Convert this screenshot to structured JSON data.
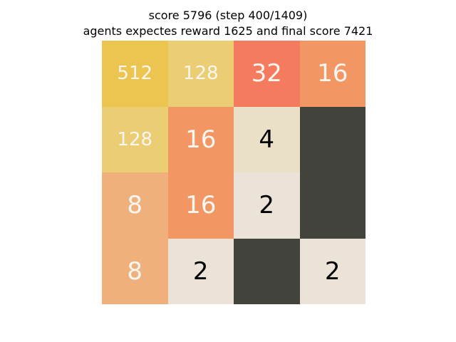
{
  "header": {
    "line1": "score 5796 (step 400/1409)",
    "line2": "agents expectes reward 1625 and final score 7421"
  },
  "board": {
    "rows": [
      [
        "512",
        "128",
        "32",
        "16"
      ],
      [
        "128",
        "16",
        "4",
        ""
      ],
      [
        "8",
        "16",
        "2",
        ""
      ],
      [
        "8",
        "2",
        "",
        "2"
      ]
    ]
  },
  "colors": {
    "empty": "#43433d",
    "2": "#ebe2d8",
    "4": "#eadfc7",
    "8": "#f0b07b",
    "16": "#f29764",
    "32": "#f57b5f",
    "128": "#ebcd73",
    "512": "#ebc54f",
    "text_dark": "#000000",
    "text_light": "#f9f6f2"
  }
}
